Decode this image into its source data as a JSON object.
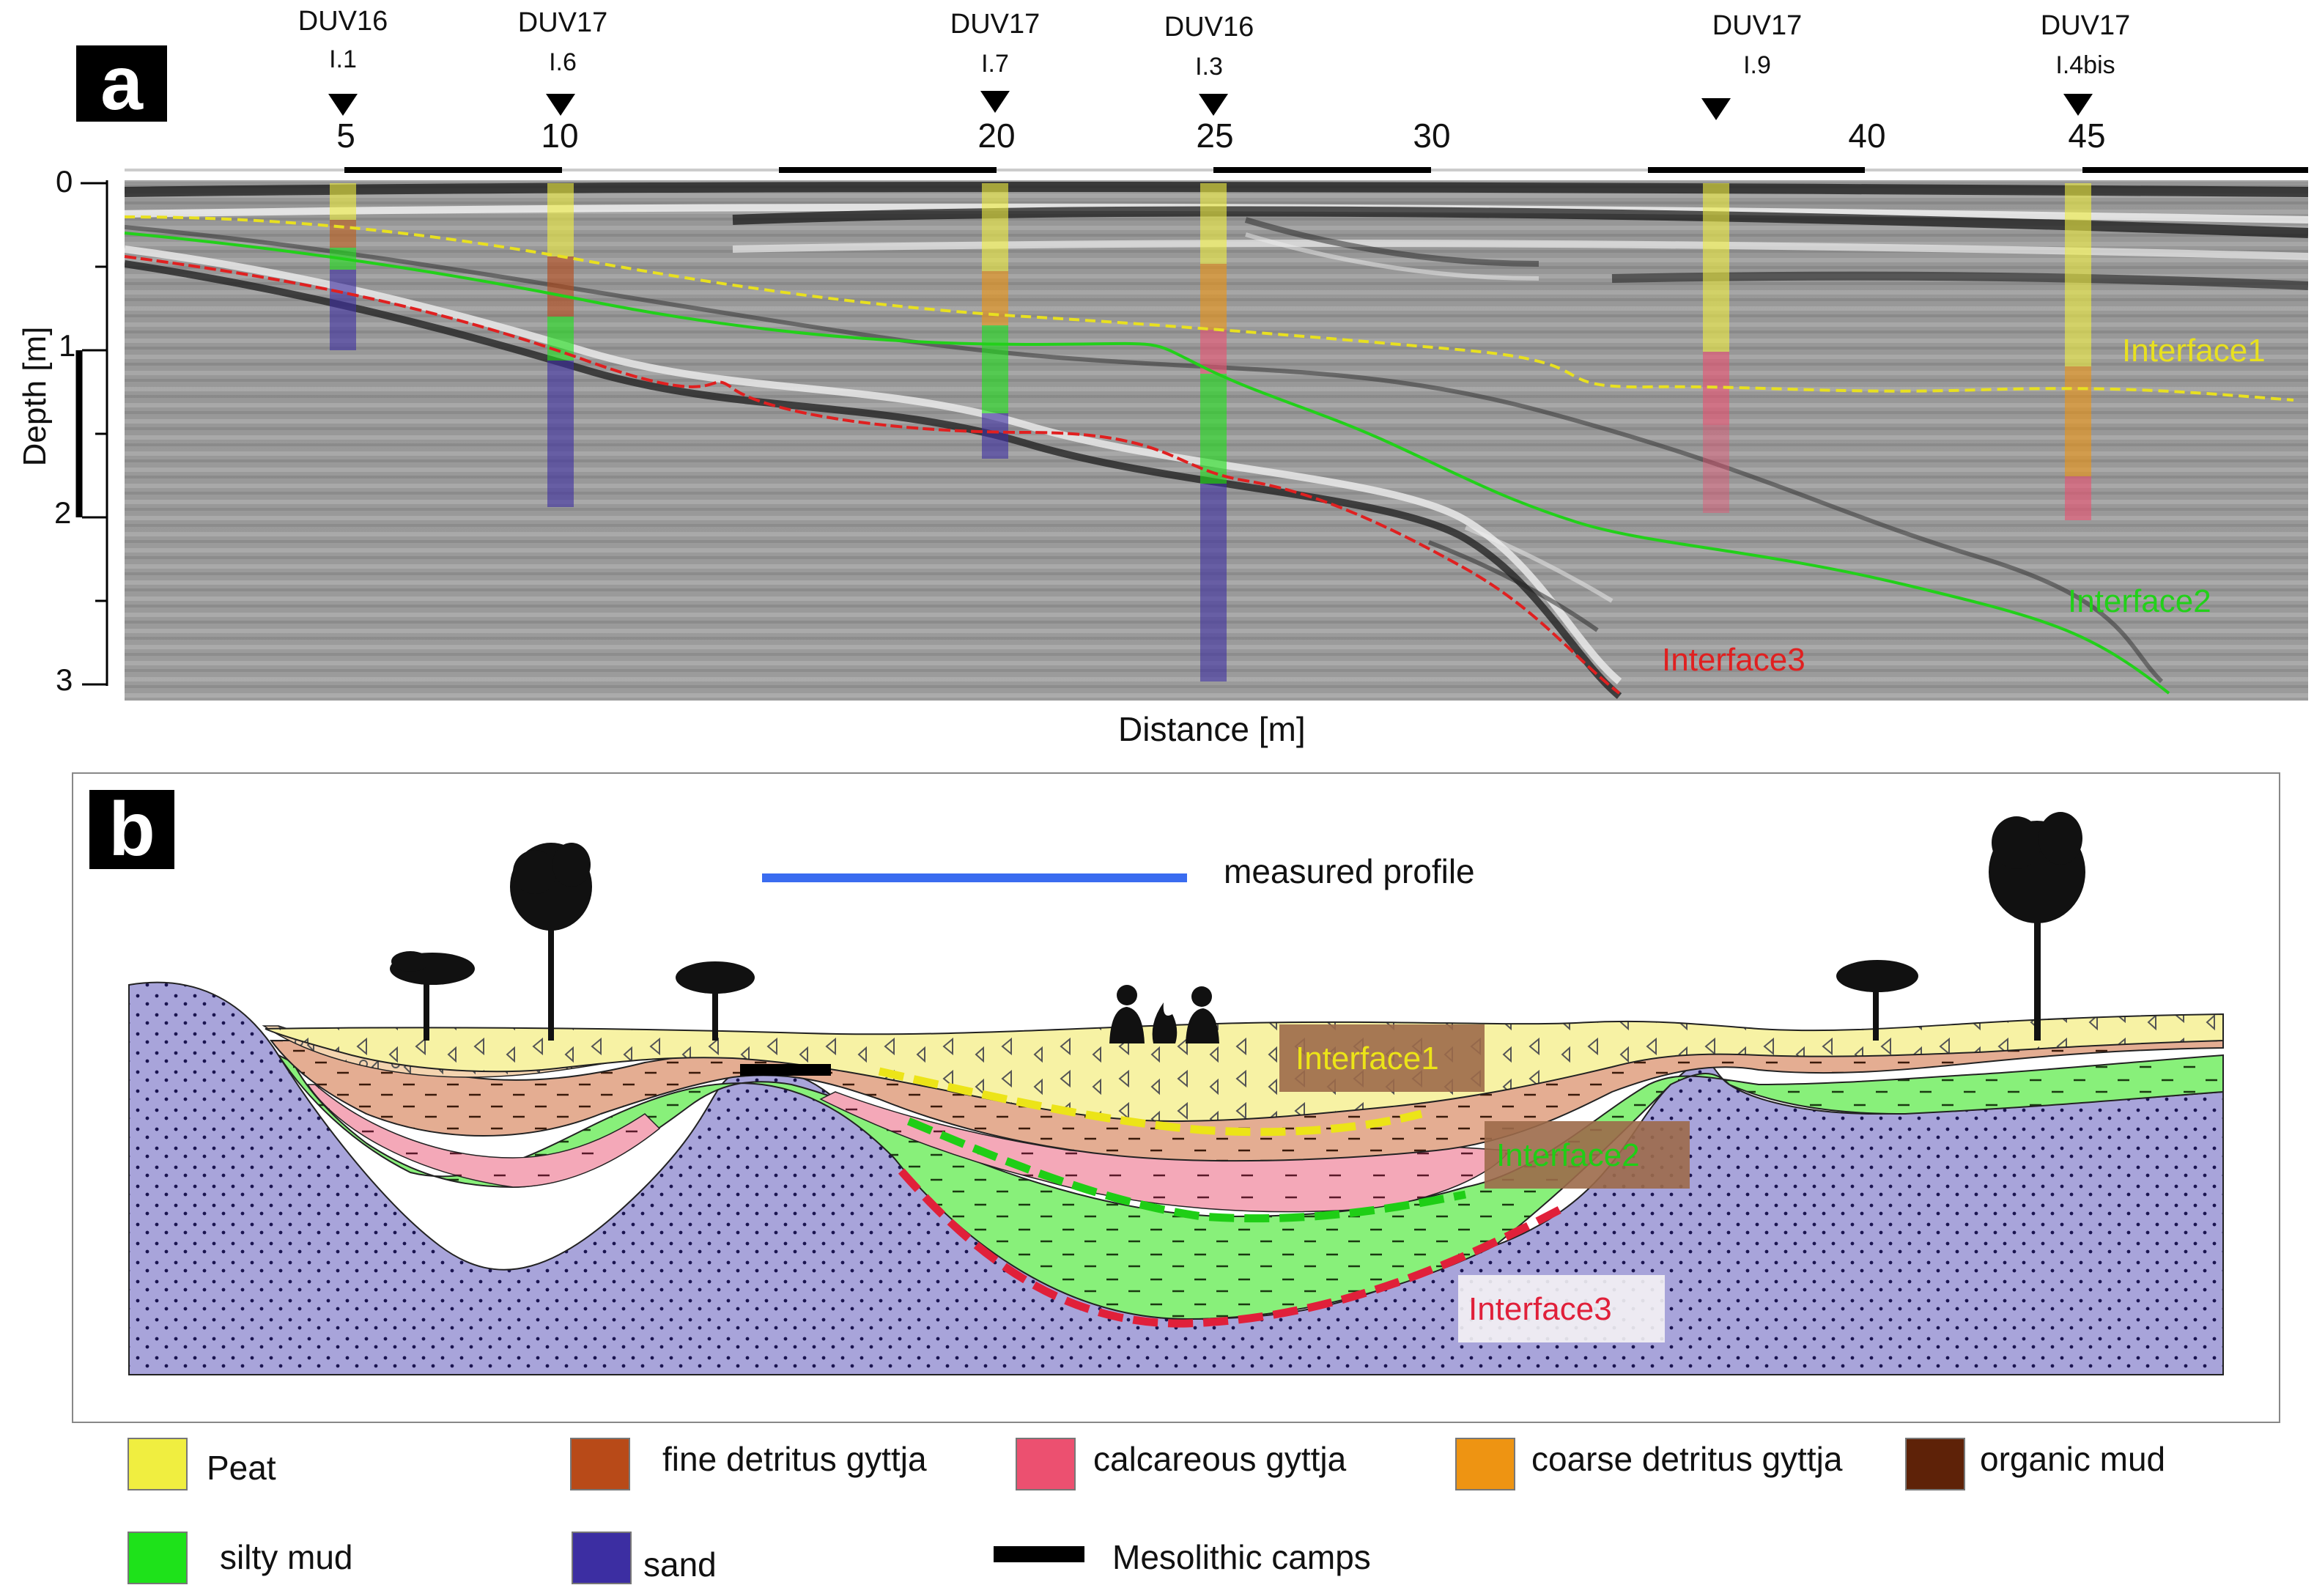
{
  "panels": {
    "a": "a",
    "b": "b"
  },
  "panel_a": {
    "x_label": "Distance [m]",
    "y_label": "Depth [m]",
    "x_ticks": [
      "5",
      "10",
      "20",
      "25",
      "30",
      "40",
      "45"
    ],
    "y_ticks": [
      "0",
      "1",
      "2",
      "3"
    ],
    "cores": [
      {
        "name": "DUV16",
        "id": "I.1"
      },
      {
        "name": "DUV17",
        "id": "I.6"
      },
      {
        "name": "DUV17",
        "id": "I.7"
      },
      {
        "name": "DUV16",
        "id": "I.3"
      },
      {
        "name": "DUV17",
        "id": "I.9"
      },
      {
        "name": "DUV17",
        "id": "I.4bis"
      }
    ],
    "interfaces": {
      "interface1": "Interface1",
      "interface2": "Interface2",
      "interface3": "Interface3"
    },
    "colors": {
      "interface1": "#e8e020",
      "interface2": "#22d01a",
      "interface3": "#e02020"
    }
  },
  "panel_b": {
    "measured_profile": "measured profile",
    "interface1": "Interface1",
    "interface2": "Interface2",
    "interface3": "Interface3"
  },
  "legend": [
    {
      "label": "Peat",
      "color": "#f0ee40"
    },
    {
      "label": "fine detritus gyttja",
      "color": "#b84a18"
    },
    {
      "label": "calcareous gyttja",
      "color": "#ec5070"
    },
    {
      "label": "coarse detritus gyttja",
      "color": "#ee9412"
    },
    {
      "label": "organic mud",
      "color": "#5e2208"
    },
    {
      "label": "silty mud",
      "color": "#1ee21a"
    },
    {
      "label": "sand",
      "color": "#3c2ea2"
    },
    {
      "label": "Mesolithic camps",
      "color": "#000000"
    }
  ]
}
